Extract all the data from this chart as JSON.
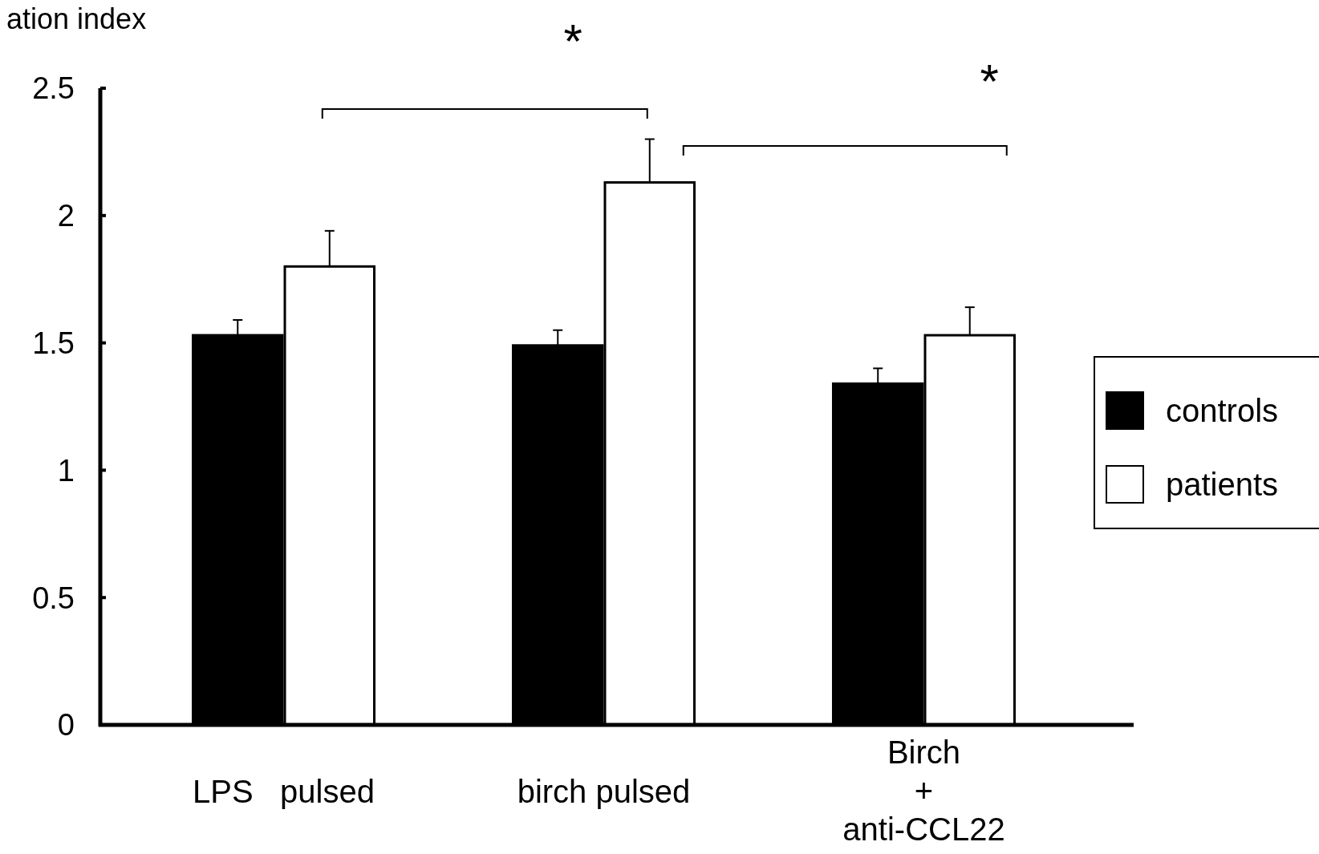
{
  "chart_data": {
    "type": "bar",
    "ylabel": "ation index",
    "categories": [
      "LPS   pulsed",
      "birch pulsed",
      "Birch\n+\nanti-CCL22"
    ],
    "series": [
      {
        "name": "controls",
        "color": "#000000",
        "values": [
          1.53,
          1.49,
          1.34
        ],
        "errors": [
          [
            1.53,
            1.59
          ],
          [
            1.49,
            1.55
          ],
          [
            1.34,
            1.4
          ]
        ]
      },
      {
        "name": "patients",
        "color": "#ffffff",
        "values": [
          1.8,
          2.13,
          1.53
        ],
        "errors": [
          [
            1.8,
            1.94
          ],
          [
            2.13,
            2.3
          ],
          [
            1.53,
            1.64
          ]
        ]
      }
    ],
    "ylim": [
      0,
      2.5
    ],
    "yticks": [
      0,
      0.5,
      1,
      1.5,
      2,
      2.5
    ],
    "legend": "right",
    "annotations": [
      "*",
      "*"
    ]
  }
}
